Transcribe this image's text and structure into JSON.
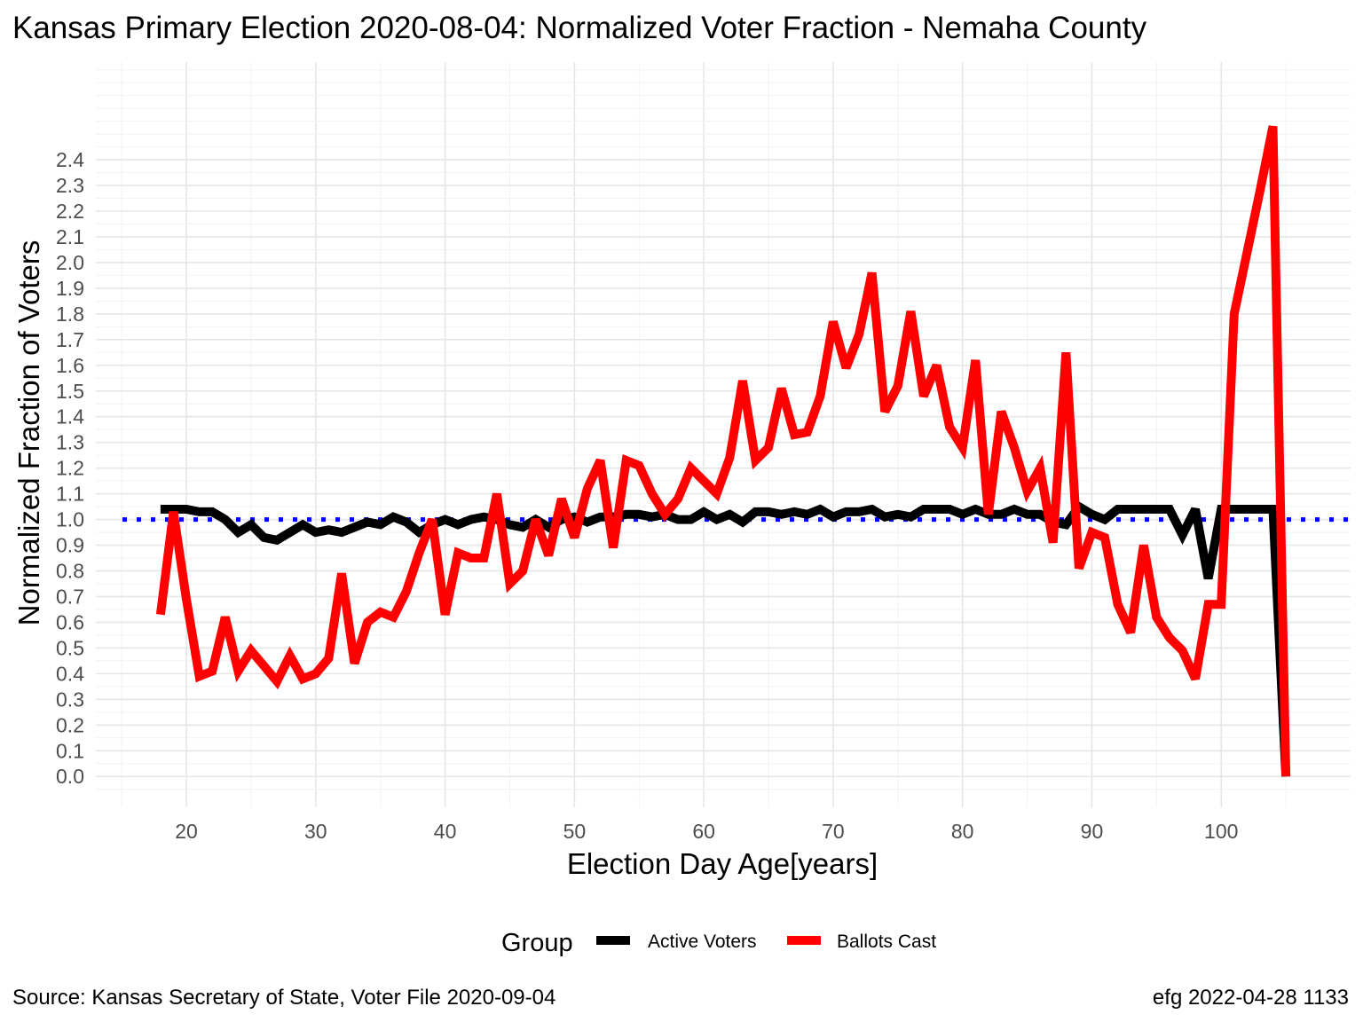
{
  "chart_data": {
    "type": "line",
    "title": "Kansas Primary Election 2020-08-04:  Normalized Voter Fraction - Nemaha County",
    "xlabel": "Election Day Age[years]",
    "ylabel": "Normalized Fraction of Voters",
    "xlim": [
      13,
      110
    ],
    "ylim": [
      -0.12,
      2.78
    ],
    "x_ticks": [
      20,
      30,
      40,
      50,
      60,
      70,
      80,
      90,
      100
    ],
    "y_ticks": [
      0.0,
      0.1,
      0.2,
      0.3,
      0.4,
      0.5,
      0.6,
      0.7,
      0.8,
      0.9,
      1.0,
      1.1,
      1.2,
      1.3,
      1.4,
      1.5,
      1.6,
      1.7,
      1.8,
      1.9,
      2.0,
      2.1,
      2.2,
      2.3,
      2.4
    ],
    "reference_line": {
      "y": 1.0,
      "style": "dotted",
      "color": "#0000ff"
    },
    "grid": true,
    "legend": {
      "title": "Group",
      "position": "bottom"
    },
    "x": [
      18,
      19,
      20,
      21,
      22,
      23,
      24,
      25,
      26,
      27,
      28,
      29,
      30,
      31,
      32,
      33,
      34,
      35,
      36,
      37,
      38,
      39,
      40,
      41,
      42,
      43,
      44,
      45,
      46,
      47,
      48,
      49,
      50,
      51,
      52,
      53,
      54,
      55,
      56,
      57,
      58,
      59,
      60,
      61,
      62,
      63,
      64,
      65,
      66,
      67,
      68,
      69,
      70,
      71,
      72,
      73,
      74,
      75,
      76,
      77,
      78,
      79,
      80,
      81,
      82,
      83,
      84,
      85,
      86,
      87,
      88,
      89,
      90,
      91,
      92,
      93,
      94,
      95,
      96,
      97,
      98,
      99,
      100,
      101,
      102,
      103,
      104,
      105
    ],
    "series": [
      {
        "name": "Active Voters",
        "color": "#000000",
        "values": [
          1.04,
          1.04,
          1.04,
          1.03,
          1.03,
          1.0,
          0.95,
          0.98,
          0.93,
          0.92,
          0.95,
          0.98,
          0.95,
          0.96,
          0.95,
          0.97,
          0.99,
          0.98,
          1.01,
          0.99,
          0.95,
          0.98,
          1.0,
          0.98,
          1.0,
          1.01,
          1.0,
          0.98,
          0.97,
          1.0,
          0.97,
          1.0,
          1.01,
          0.99,
          1.01,
          1.01,
          1.02,
          1.02,
          1.01,
          1.02,
          1.0,
          1.0,
          1.03,
          1.0,
          1.02,
          0.99,
          1.03,
          1.03,
          1.02,
          1.03,
          1.02,
          1.04,
          1.01,
          1.03,
          1.03,
          1.04,
          1.01,
          1.02,
          1.01,
          1.04,
          1.04,
          1.04,
          1.02,
          1.04,
          1.02,
          1.02,
          1.04,
          1.02,
          1.02,
          0.99,
          0.98,
          1.05,
          1.02,
          1.0,
          1.04,
          1.04,
          1.04,
          1.04,
          1.04,
          0.94,
          1.04,
          0.77,
          1.04,
          1.04,
          1.04,
          1.04,
          1.04,
          0.0
        ]
      },
      {
        "name": "Ballots Cast",
        "color": "#ff0000",
        "values": [
          0.63,
          1.03,
          0.69,
          0.39,
          0.41,
          0.62,
          0.41,
          0.49,
          0.43,
          0.37,
          0.47,
          0.38,
          0.4,
          0.46,
          0.79,
          0.44,
          0.6,
          0.64,
          0.62,
          0.72,
          0.87,
          1.0,
          0.63,
          0.87,
          0.85,
          0.85,
          1.1,
          0.75,
          0.8,
          1.0,
          0.86,
          1.08,
          0.93,
          1.12,
          1.23,
          0.89,
          1.23,
          1.21,
          1.1,
          1.02,
          1.08,
          1.2,
          1.15,
          1.1,
          1.24,
          1.54,
          1.23,
          1.28,
          1.51,
          1.33,
          1.34,
          1.48,
          1.77,
          1.59,
          1.72,
          1.96,
          1.42,
          1.52,
          1.81,
          1.48,
          1.6,
          1.36,
          1.28,
          1.62,
          1.02,
          1.42,
          1.28,
          1.11,
          1.2,
          0.91,
          1.65,
          0.81,
          0.95,
          0.93,
          0.67,
          0.56,
          0.9,
          0.62,
          0.54,
          0.49,
          0.38,
          0.67,
          0.67,
          1.8,
          2.04,
          2.28,
          2.53,
          0.0
        ]
      }
    ]
  },
  "footer": {
    "source": "Source:  Kansas Secretary of State, Voter File  2020-09-04",
    "stamp": "efg 2022-04-28 1133"
  }
}
